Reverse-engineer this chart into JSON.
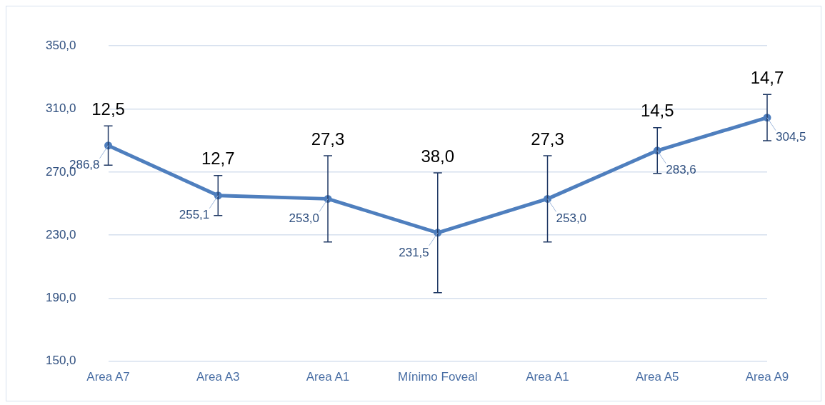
{
  "chart_data": {
    "type": "line",
    "categories": [
      "Area A7",
      "Area A3",
      "Area A1",
      "Mínimo Foveal",
      "Area A1",
      "Area A5",
      "Area A9"
    ],
    "series": [
      {
        "color": "#4f7fbe",
        "values": [
          286.8,
          255.1,
          253.0,
          231.5,
          253.0,
          283.6,
          304.5
        ],
        "errors": [
          12.5,
          12.7,
          27.3,
          38.0,
          27.3,
          14.5,
          14.7
        ],
        "value_labels": [
          "286,8",
          "255,1",
          "253,0",
          "231,5",
          "253,0",
          "283,6",
          "304,5"
        ]
      }
    ],
    "ylim": [
      150,
      350
    ],
    "yticks": [
      {
        "value": 150,
        "label": "150,0"
      },
      {
        "value": 190,
        "label": "190,0"
      },
      {
        "value": 230,
        "label": "230,0"
      },
      {
        "value": 270,
        "label": "270,0"
      },
      {
        "value": 310,
        "label": "310,0"
      },
      {
        "value": 350,
        "label": "350,0"
      }
    ],
    "grid": "y",
    "legend": false,
    "marker": "circle",
    "annotations": [
      "12,5",
      "12,7",
      "27,3",
      "38,0",
      "27,3",
      "14,5",
      "14,7"
    ]
  }
}
